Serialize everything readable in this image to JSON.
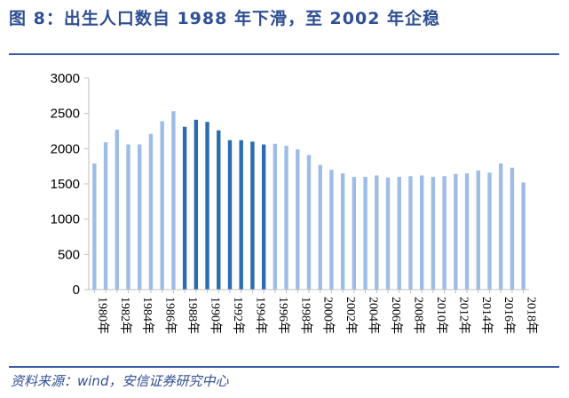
{
  "title": "图 8：出生人口数自 1988 年下滑，至 2002 年企稳",
  "source": "资料来源：wind，安信证券研究中心",
  "colors": {
    "bar_light": "#9dbde6",
    "bar_dark": "#2b6cb0",
    "axis": "#bfbfbf",
    "title": "#2f4f93"
  },
  "chart_data": {
    "type": "bar",
    "categories": [
      "1980年",
      "1981年",
      "1982年",
      "1983年",
      "1984年",
      "1985年",
      "1986年",
      "1987年",
      "1988年",
      "1989年",
      "1990年",
      "1991年",
      "1992年",
      "1993年",
      "1994年",
      "1995年",
      "1996年",
      "1997年",
      "1998年",
      "1999年",
      "2000年",
      "2001年",
      "2002年",
      "2003年",
      "2004年",
      "2005年",
      "2006年",
      "2007年",
      "2008年",
      "2009年",
      "2010年",
      "2011年",
      "2012年",
      "2013年",
      "2014年",
      "2015年",
      "2016年",
      "2017年",
      "2018年"
    ],
    "xtick_labels": [
      "1980年",
      "1982年",
      "1984年",
      "1986年",
      "1988年",
      "1990年",
      "1992年",
      "1994年",
      "1996年",
      "1998年",
      "2000年",
      "2002年",
      "2004年",
      "2006年",
      "2008年",
      "2010年",
      "2012年",
      "2014年",
      "2016年",
      "2018年"
    ],
    "values": [
      1790,
      2090,
      2270,
      2060,
      2060,
      2210,
      2390,
      2530,
      2310,
      2410,
      2380,
      2260,
      2120,
      2120,
      2100,
      2060,
      2070,
      2040,
      1990,
      1910,
      1770,
      1700,
      1650,
      1600,
      1600,
      1620,
      1590,
      1600,
      1610,
      1620,
      1600,
      1610,
      1640,
      1650,
      1690,
      1660,
      1790,
      1730,
      1520
    ],
    "highlighted": [
      "1988年",
      "1989年",
      "1990年",
      "1991年",
      "1992年",
      "1993年",
      "1994年",
      "1995年"
    ],
    "yticks": [
      0,
      500,
      1000,
      1500,
      2000,
      2500,
      3000
    ],
    "ylim": [
      0,
      3000
    ]
  }
}
